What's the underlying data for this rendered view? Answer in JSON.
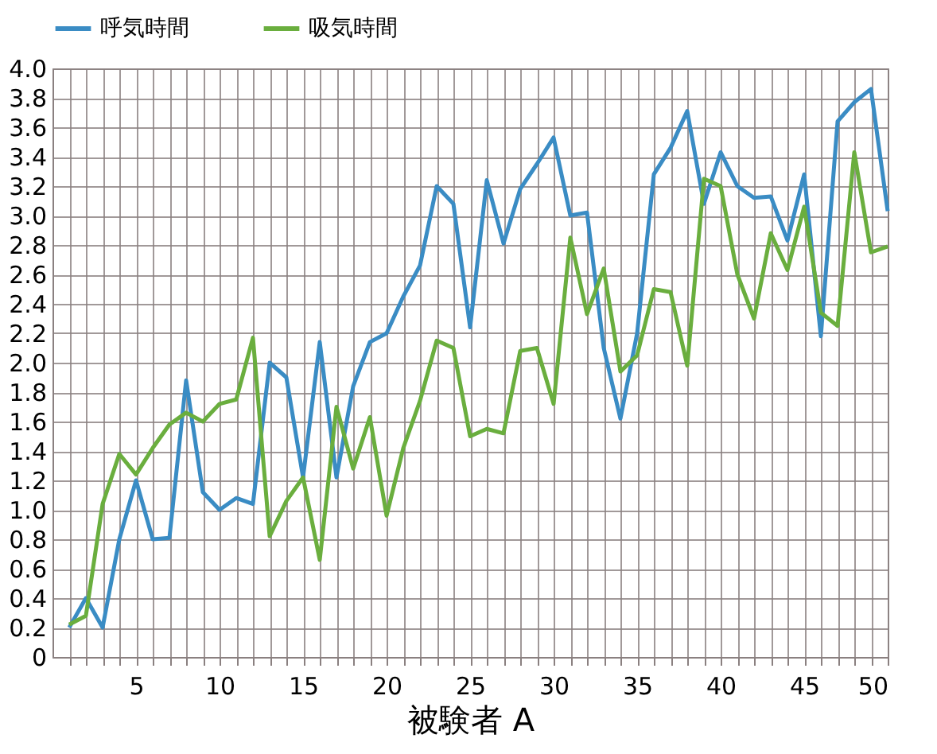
{
  "chart_data": {
    "type": "line",
    "xlabel": "被験者 A",
    "x": [
      1,
      2,
      3,
      4,
      5,
      6,
      7,
      8,
      9,
      10,
      11,
      12,
      13,
      14,
      15,
      16,
      17,
      18,
      19,
      20,
      21,
      22,
      23,
      24,
      25,
      26,
      27,
      28,
      29,
      30,
      31,
      32,
      33,
      34,
      35,
      36,
      37,
      38,
      39,
      40,
      41,
      42,
      43,
      44,
      45,
      46,
      47,
      48,
      49,
      50
    ],
    "series": [
      {
        "name": "呼気時間",
        "color": "#3a8cc4",
        "values": [
          0.2,
          0.4,
          0.2,
          0.8,
          1.2,
          0.8,
          0.81,
          1.88,
          1.12,
          1.0,
          1.08,
          1.04,
          2.0,
          1.9,
          1.22,
          2.14,
          1.22,
          1.84,
          2.14,
          2.2,
          2.45,
          2.66,
          3.2,
          3.08,
          2.24,
          3.24,
          2.81,
          3.18,
          3.35,
          3.53,
          3.0,
          3.02,
          2.1,
          1.62,
          2.2,
          3.28,
          3.46,
          3.71,
          3.08,
          3.43,
          3.2,
          3.12,
          3.13,
          2.83,
          3.28,
          2.18,
          3.64,
          3.77,
          3.86,
          3.03
        ]
      },
      {
        "name": "吸気時間",
        "color": "#6aae3e",
        "values": [
          0.22,
          0.28,
          1.04,
          1.38,
          1.24,
          1.42,
          1.58,
          1.66,
          1.6,
          1.72,
          1.75,
          2.17,
          0.82,
          1.06,
          1.22,
          0.66,
          1.7,
          1.28,
          1.63,
          0.96,
          1.42,
          1.74,
          2.15,
          2.1,
          1.5,
          1.55,
          1.52,
          2.08,
          2.1,
          1.72,
          2.85,
          2.33,
          2.64,
          1.94,
          2.05,
          2.5,
          2.48,
          1.98,
          3.25,
          3.2,
          2.6,
          2.3,
          2.88,
          2.63,
          3.06,
          2.34,
          2.25,
          3.43,
          2.75,
          2.79
        ]
      }
    ],
    "xlim": [
      0,
      50
    ],
    "xticks": [
      {
        "value": 1,
        "label": null
      },
      {
        "value": 2,
        "label": null
      },
      {
        "value": 3,
        "label": null
      },
      {
        "value": 4,
        "label": null
      },
      5,
      {
        "value": 6,
        "label": null
      },
      {
        "value": 7,
        "label": null
      },
      {
        "value": 8,
        "label": null
      },
      {
        "value": 9,
        "label": null
      },
      10,
      {
        "value": 11,
        "label": null
      },
      {
        "value": 12,
        "label": null
      },
      {
        "value": 13,
        "label": null
      },
      {
        "value": 14,
        "label": null
      },
      15,
      {
        "value": 16,
        "label": null
      },
      {
        "value": 17,
        "label": null
      },
      {
        "value": 18,
        "label": null
      },
      {
        "value": 19,
        "label": null
      },
      20,
      {
        "value": 21,
        "label": null
      },
      {
        "value": 22,
        "label": null
      },
      {
        "value": 23,
        "label": null
      },
      {
        "value": 24,
        "label": null
      },
      25,
      {
        "value": 26,
        "label": null
      },
      {
        "value": 27,
        "label": null
      },
      {
        "value": 28,
        "label": null
      },
      {
        "value": 29,
        "label": null
      },
      30,
      {
        "value": 31,
        "label": null
      },
      {
        "value": 32,
        "label": null
      },
      {
        "value": 33,
        "label": null
      },
      {
        "value": 34,
        "label": null
      },
      35,
      {
        "value": 36,
        "label": null
      },
      {
        "value": 37,
        "label": null
      },
      {
        "value": 38,
        "label": null
      },
      {
        "value": 39,
        "label": null
      },
      40,
      {
        "value": 41,
        "label": null
      },
      {
        "value": 42,
        "label": null
      },
      {
        "value": 43,
        "label": null
      },
      {
        "value": 44,
        "label": null
      },
      45,
      {
        "value": 46,
        "label": null
      },
      {
        "value": 47,
        "label": null
      },
      {
        "value": 48,
        "label": null
      },
      {
        "value": 49,
        "label": null
      },
      50
    ],
    "ylim": [
      0,
      4
    ],
    "yticks": [
      0,
      0.2,
      0.4,
      0.6,
      0.8,
      {
        "value": 1,
        "label": "1.0"
      },
      1.2,
      1.4,
      1.6,
      1.8,
      {
        "value": 2,
        "label": "2.0"
      },
      2.2,
      2.4,
      2.6,
      2.8,
      {
        "value": 3,
        "label": "3.0"
      },
      3.2,
      3.4,
      3.6,
      3.8,
      {
        "value": 4,
        "label": "4.0"
      }
    ],
    "grid": true,
    "legend": "top",
    "marker": "none",
    "line_style": "solid"
  }
}
